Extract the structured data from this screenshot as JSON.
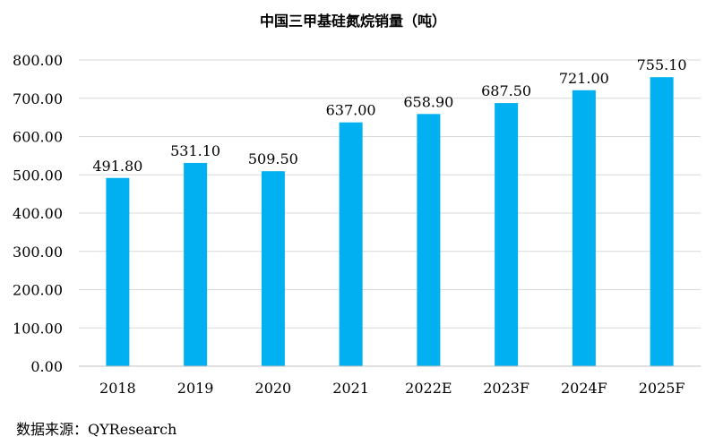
{
  "chart_data": {
    "type": "bar",
    "title": "中国三甲基硅氮烷销量（吨）",
    "categories": [
      "2018",
      "2019",
      "2020",
      "2021",
      "2022E",
      "2023F",
      "2024F",
      "2025F"
    ],
    "values": [
      491.8,
      531.1,
      509.5,
      637.0,
      658.9,
      687.5,
      721.0,
      755.1
    ],
    "data_labels": [
      "491.80",
      "531.10",
      "509.50",
      "637.00",
      "658.90",
      "687.50",
      "721.00",
      "755.10"
    ],
    "y_ticks": [
      0,
      100,
      200,
      300,
      400,
      500,
      600,
      700,
      800
    ],
    "y_tick_labels": [
      "0.00",
      "100.00",
      "200.00",
      "300.00",
      "400.00",
      "500.00",
      "600.00",
      "700.00",
      "800.00"
    ],
    "ylim": [
      0,
      800
    ],
    "xlabel": "",
    "ylabel": "",
    "grid": true,
    "legend": false,
    "colors": {
      "bar": "#00B0F0",
      "grid": "#D9D9D9",
      "axis": "#BFBFBF"
    }
  },
  "source": "数据来源：QYResearch"
}
